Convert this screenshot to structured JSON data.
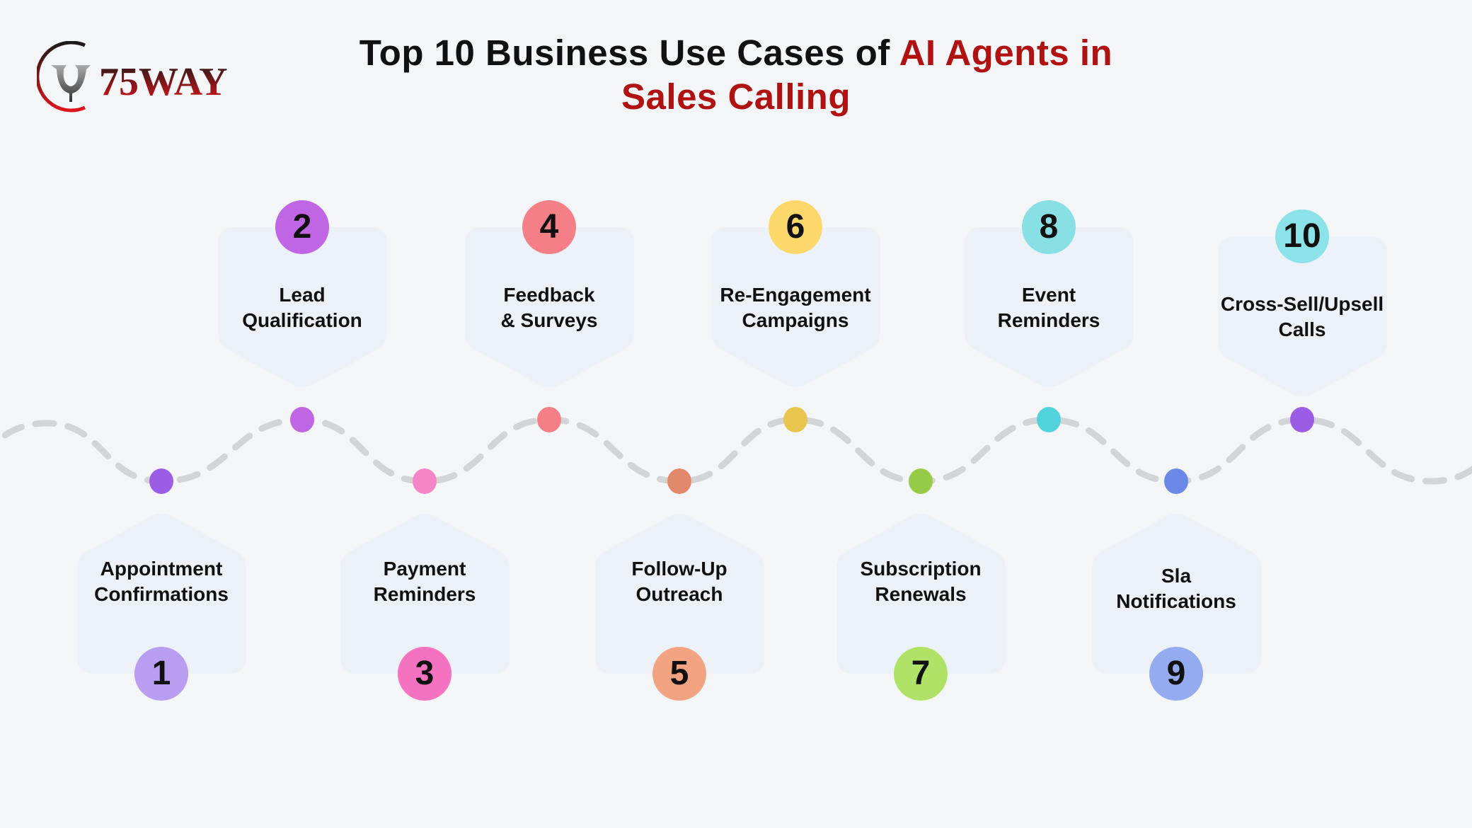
{
  "logo": {
    "text": "75WAY",
    "colors": {
      "dark": "#222222",
      "red": "#e0141b"
    }
  },
  "title": {
    "part1": "Top 10 Business Use Cases of ",
    "accent": "AI Agents in Sales Calling",
    "accent_color": "#b01212"
  },
  "items": [
    {
      "number": "1",
      "line1": "Appointment",
      "line2": "Confirmations",
      "position": "bottom",
      "dot_color": "#9b5de5",
      "badge_color": "#b99df0"
    },
    {
      "number": "2",
      "line1": "Lead",
      "line2": "Qualification",
      "position": "top",
      "dot_color": "#c065e3",
      "badge_color": "#c065e3"
    },
    {
      "number": "3",
      "line1": "Payment",
      "line2": "Reminders",
      "position": "bottom",
      "dot_color": "#f485c6",
      "badge_color": "#f472c0"
    },
    {
      "number": "4",
      "line1": "Feedback",
      "line2": "& Surveys",
      "position": "top",
      "dot_color": "#f47f87",
      "badge_color": "#f47f87"
    },
    {
      "number": "5",
      "line1": "Follow-Up",
      "line2": "Outreach",
      "position": "bottom",
      "dot_color": "#e2876a",
      "badge_color": "#f2a482"
    },
    {
      "number": "6",
      "line1": "Re-Engagement",
      "line2": "Campaigns",
      "position": "top",
      "dot_color": "#e9c54e",
      "badge_color": "#fcd86a"
    },
    {
      "number": "7",
      "line1": "Subscription",
      "line2": "Renewals",
      "position": "bottom",
      "dot_color": "#96cb48",
      "badge_color": "#afe267"
    },
    {
      "number": "8",
      "line1": "Event",
      "line2": "Reminders",
      "position": "top",
      "dot_color": "#52d3dc",
      "badge_color": "#88e0e4"
    },
    {
      "number": "9",
      "line1": "Sla",
      "line2": "Notifications",
      "position": "bottom",
      "dot_color": "#6a88e6",
      "badge_color": "#95abef"
    },
    {
      "number": "10",
      "line1": "Cross-Sell/Upsell",
      "line2": "Calls",
      "position": "top",
      "dot_color": "#9b5de5",
      "badge_color": "#8be3e9"
    }
  ],
  "colors": {
    "background": "#f3f5f7",
    "card": "#ecf1f8",
    "wave": "#d3d4d6"
  }
}
